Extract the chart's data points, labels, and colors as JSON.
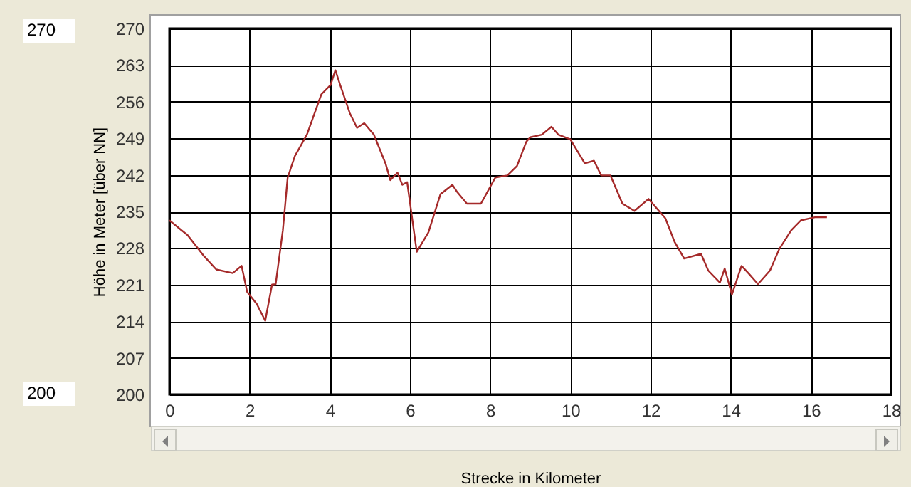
{
  "chart_data": {
    "type": "line",
    "xlabel": "Strecke in Kilometer",
    "ylabel": "Höhe in Meter [über NN]",
    "annotations": [
      "270",
      "200"
    ],
    "x": [
      0,
      0.45,
      0.87,
      1.17,
      1.58,
      1.8,
      1.94,
      2.18,
      2.39,
      2.56,
      2.65,
      2.83,
      2.95,
      3.13,
      3.43,
      3.79,
      4.02,
      4.14,
      4.26,
      4.5,
      4.68,
      4.86,
      5.1,
      5.39,
      5.51,
      5.69,
      5.81,
      5.93,
      6.17,
      6.46,
      6.76,
      7.06,
      7.18,
      7.42,
      7.77,
      8.13,
      8.43,
      8.67,
      8.9,
      9.0,
      9.29,
      9.53,
      9.7,
      10,
      10.36,
      10.59,
      10.77,
      11.0,
      11.3,
      11.6,
      11.95,
      12.37,
      12.6,
      12.84,
      13.26,
      13.44,
      13.73,
      13.85,
      14.03,
      14.27,
      14.44,
      14.68,
      14.98,
      15.21,
      15.51,
      15.75,
      16.1,
      16.4
    ],
    "series": [
      {
        "color": "#a52a2a",
        "values": [
          233.3,
          230.5,
          226.4,
          223.9,
          223.2,
          224.6,
          219.6,
          217.3,
          214.1,
          221,
          221.1,
          231.4,
          241.5,
          245.6,
          249.7,
          257.4,
          259.2,
          262,
          259.2,
          253.8,
          251,
          251.9,
          249.7,
          244.2,
          241,
          242.4,
          240.1,
          240.6,
          227.3,
          231,
          238.3,
          240.1,
          238.7,
          236.5,
          236.5,
          241.5,
          241.9,
          243.7,
          248.3,
          249.2,
          249.7,
          251.2,
          249.7,
          248.8,
          244.2,
          244.7,
          241.9,
          241.9,
          236.5,
          235.1,
          237.4,
          233.7,
          229.2,
          226,
          226.9,
          223.7,
          221.4,
          224.1,
          219.1,
          224.6,
          223.2,
          221.1,
          223.7,
          227.8,
          231.4,
          233.3,
          233.9,
          233.9
        ]
      }
    ],
    "xlim": [
      0,
      18
    ],
    "xticks": [
      0,
      2,
      4,
      6,
      8,
      10,
      12,
      14,
      16,
      18
    ],
    "ylim": [
      200,
      270
    ],
    "yticks": [
      200,
      207,
      214,
      221,
      228,
      235,
      242,
      249,
      256,
      263,
      270
    ],
    "grid": true,
    "marker": "none",
    "line_style": "solid"
  }
}
